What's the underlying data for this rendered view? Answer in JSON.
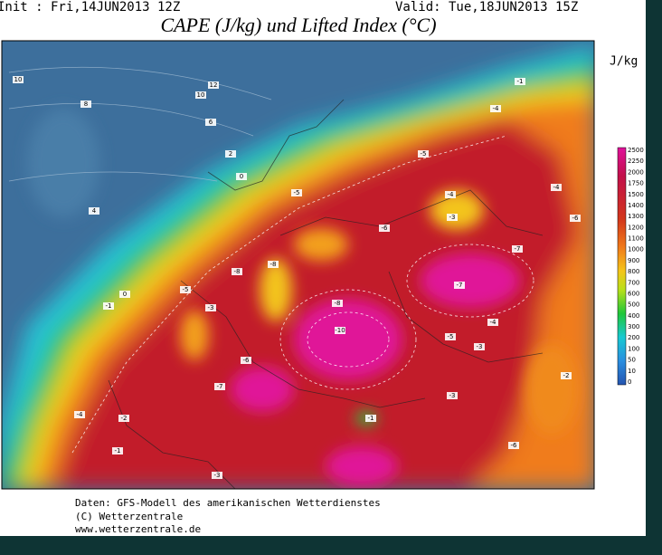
{
  "header": {
    "init": "Init : Fri,14JUN2013 12Z",
    "valid": "Valid: Tue,18JUN2013 15Z",
    "title": "CAPE (J/kg) und Lifted Index (°C)"
  },
  "colorbar": {
    "unit": "J/kg",
    "labels": [
      "2500",
      "2250",
      "2000",
      "1750",
      "1500",
      "1400",
      "1300",
      "1200",
      "1100",
      "1000",
      "900",
      "800",
      "700",
      "600",
      "500",
      "400",
      "300",
      "200",
      "100",
      "50",
      "10",
      "0"
    ]
  },
  "contour_labels": [
    "10",
    "12",
    "10",
    "8",
    "6",
    "4",
    "2",
    "0",
    "-1",
    "-4",
    "-5",
    "-5",
    "-4",
    "-6",
    "-3",
    "-7",
    "-8",
    "-8",
    "-7",
    "-8",
    "-10",
    "-6",
    "-7",
    "-5",
    "-3",
    "-4",
    "-2",
    "-1",
    "-3",
    "-1",
    "-3",
    "-6",
    "-2",
    "-6",
    "-4",
    "0",
    "-1",
    "-3",
    "-5",
    "-4"
  ],
  "footer": [
    "Daten: GFS-Modell des amerikanischen Wetterdienstes",
    "(C) Wetterzentrale",
    "www.wetterzentrale.de"
  ]
}
